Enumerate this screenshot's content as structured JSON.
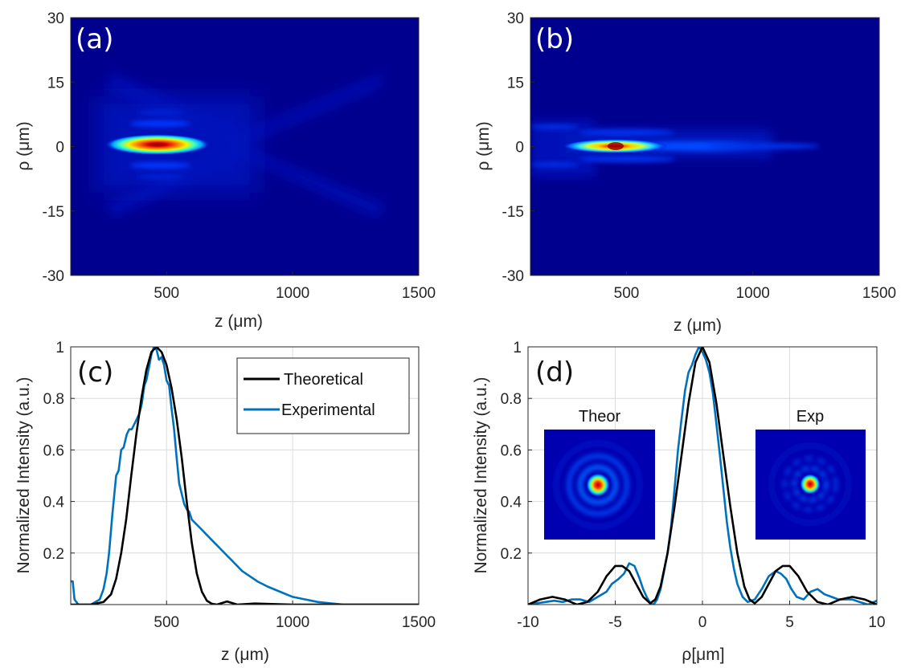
{
  "colors": {
    "theoretical": "#000000",
    "experimental": "#0072BD",
    "map_background": "#00008F",
    "grid": "#dcdcdc"
  },
  "panels": {
    "a": {
      "label": "(a)"
    },
    "b": {
      "label": "(b)"
    },
    "c": {
      "label": "(c)"
    },
    "d": {
      "label": "(d)"
    }
  },
  "insets": {
    "theor_title": "Theor",
    "exp_title": "Exp"
  },
  "chart_data": [
    {
      "type": "heatmap",
      "panel": "(a)",
      "xlabel": "z (μm)",
      "ylabel": "ρ (μm)",
      "xlim": [
        120,
        1500
      ],
      "ylim": [
        -30,
        30
      ],
      "xticks": [
        500,
        1000,
        1500
      ],
      "yticks": [
        -30,
        -15,
        0,
        15,
        30
      ],
      "xtick_labels": [
        "500",
        "1000",
        "1500"
      ],
      "ytick_labels": [
        "-30",
        "-15",
        "0",
        "15",
        "30"
      ],
      "colormap": "jet",
      "features": {
        "peak_z": 460,
        "peak_rho": 0,
        "main_lobe_z_range": [
          260,
          650
        ],
        "side_lobes_rho": [
          -5,
          5
        ],
        "faint_x_wings_z_range": [
          160,
          760
        ]
      }
    },
    {
      "type": "heatmap",
      "panel": "(b)",
      "xlabel": "z (μm)",
      "ylabel": "ρ (μm)",
      "xlim": [
        120,
        1500
      ],
      "ylim": [
        -30,
        30
      ],
      "xticks": [
        500,
        1000,
        1500
      ],
      "yticks": [
        -30,
        -15,
        0,
        15,
        30
      ],
      "xtick_labels": [
        "500",
        "1000",
        "1500"
      ],
      "ytick_labels": [
        "-30",
        "-15",
        "0",
        "15",
        "30"
      ],
      "colormap": "jet",
      "features": {
        "peak_z": 450,
        "peak_rho": 0,
        "main_lobe_z_range": [
          270,
          1000
        ]
      }
    },
    {
      "type": "line",
      "panel": "(c)",
      "xlabel": "z (μm)",
      "ylabel": "Normalized Intensity (a.u.)",
      "xlim": [
        120,
        1500
      ],
      "ylim": [
        0,
        1
      ],
      "xticks": [
        500,
        1000,
        1500
      ],
      "yticks": [
        0.2,
        0.4,
        0.6,
        0.8,
        1
      ],
      "xtick_labels": [
        "500",
        "1000",
        "1500"
      ],
      "ytick_labels": [
        "0.2",
        "0.4",
        "0.6",
        "0.8",
        "1"
      ],
      "grid": true,
      "legend": {
        "position": "top-right",
        "entries": [
          "Theoretical",
          "Experimental"
        ]
      },
      "series": [
        {
          "name": "Theoretical",
          "x": [
            120,
            200,
            250,
            280,
            300,
            320,
            340,
            360,
            380,
            400,
            420,
            440,
            460,
            480,
            500,
            520,
            540,
            560,
            580,
            600,
            620,
            640,
            660,
            680,
            700,
            740,
            780,
            850,
            1000,
            1500
          ],
          "y": [
            0.0,
            0.0,
            0.01,
            0.04,
            0.1,
            0.2,
            0.33,
            0.5,
            0.66,
            0.8,
            0.91,
            0.98,
            1.0,
            0.98,
            0.93,
            0.84,
            0.72,
            0.57,
            0.4,
            0.24,
            0.12,
            0.05,
            0.015,
            0.003,
            0.0,
            0.012,
            0.0,
            0.004,
            0.0,
            0.0
          ]
        },
        {
          "name": "Experimental",
          "x": [
            120,
            128,
            135,
            150,
            200,
            235,
            250,
            262,
            272,
            285,
            300,
            310,
            320,
            330,
            342,
            352,
            362,
            372,
            382,
            392,
            402,
            412,
            420,
            430,
            440,
            450,
            460,
            470,
            480,
            490,
            500,
            510,
            520,
            530,
            540,
            550,
            560,
            570,
            580,
            590,
            600,
            620,
            640,
            660,
            680,
            700,
            720,
            740,
            760,
            780,
            800,
            830,
            860,
            900,
            950,
            1000,
            1050,
            1100,
            1150,
            1200,
            1500
          ],
          "y": [
            0.09,
            0.09,
            0.02,
            0.0,
            0.0,
            0.02,
            0.06,
            0.12,
            0.2,
            0.35,
            0.5,
            0.52,
            0.6,
            0.61,
            0.66,
            0.68,
            0.68,
            0.7,
            0.72,
            0.74,
            0.78,
            0.85,
            0.87,
            0.92,
            0.97,
            1.0,
            0.99,
            0.95,
            0.96,
            0.93,
            0.87,
            0.85,
            0.76,
            0.68,
            0.57,
            0.47,
            0.43,
            0.39,
            0.37,
            0.36,
            0.33,
            0.31,
            0.29,
            0.27,
            0.25,
            0.23,
            0.21,
            0.19,
            0.17,
            0.15,
            0.13,
            0.11,
            0.09,
            0.07,
            0.05,
            0.03,
            0.02,
            0.01,
            0.005,
            0.0,
            0.0
          ]
        }
      ]
    },
    {
      "type": "line",
      "panel": "(d)",
      "xlabel": "ρ[μm]",
      "ylabel": "Normalized Intensity (a.u.)",
      "xlim": [
        -10,
        10
      ],
      "ylim": [
        0,
        1
      ],
      "xticks": [
        -10,
        -5,
        0,
        5,
        10
      ],
      "yticks": [
        0.2,
        0.4,
        0.6,
        0.8,
        1
      ],
      "xtick_labels": [
        "-10",
        "-5",
        "0",
        "5",
        "10"
      ],
      "ytick_labels": [
        "0.2",
        "0.4",
        "0.6",
        "0.8",
        "1"
      ],
      "grid": true,
      "series": [
        {
          "name": "Theoretical",
          "x": [
            -10,
            -9.3,
            -8.6,
            -7.9,
            -7.2,
            -6.6,
            -6.0,
            -5.5,
            -5.0,
            -4.6,
            -4.2,
            -3.8,
            -3.4,
            -3.0,
            -2.7,
            -2.4,
            -2.0,
            -1.6,
            -1.2,
            -0.8,
            -0.4,
            0,
            0.4,
            0.8,
            1.2,
            1.6,
            2.0,
            2.4,
            2.7,
            3.0,
            3.4,
            3.8,
            4.2,
            4.6,
            5.0,
            5.5,
            6.0,
            6.6,
            7.2,
            7.9,
            8.6,
            9.3,
            10
          ],
          "y": [
            0.0,
            0.02,
            0.03,
            0.02,
            0.0,
            0.01,
            0.05,
            0.11,
            0.15,
            0.15,
            0.13,
            0.08,
            0.03,
            0.005,
            0.02,
            0.07,
            0.2,
            0.38,
            0.58,
            0.78,
            0.94,
            1.0,
            0.94,
            0.78,
            0.58,
            0.38,
            0.2,
            0.07,
            0.02,
            0.005,
            0.03,
            0.08,
            0.13,
            0.15,
            0.15,
            0.11,
            0.05,
            0.01,
            0.0,
            0.02,
            0.03,
            0.02,
            0.0
          ]
        },
        {
          "name": "Experimental",
          "x": [
            -10,
            -9.5,
            -9.0,
            -8.5,
            -8.0,
            -7.5,
            -7.0,
            -6.5,
            -6.0,
            -5.5,
            -5.2,
            -4.8,
            -4.5,
            -4.2,
            -3.9,
            -3.6,
            -3.4,
            -3.2,
            -3.0,
            -2.8,
            -2.6,
            -2.4,
            -2.2,
            -2.0,
            -1.8,
            -1.6,
            -1.4,
            -1.2,
            -1.0,
            -0.8,
            -0.6,
            -0.4,
            -0.2,
            0,
            0.2,
            0.4,
            0.6,
            0.8,
            1.0,
            1.2,
            1.4,
            1.6,
            1.8,
            2.0,
            2.3,
            2.6,
            3.0,
            3.4,
            3.8,
            4.2,
            4.5,
            4.8,
            5.1,
            5.4,
            5.8,
            6.2,
            6.6,
            7.0,
            7.4,
            7.8,
            8.2,
            8.6,
            9.0,
            9.5,
            10
          ],
          "y": [
            0.0,
            0.005,
            0.01,
            0.015,
            0.01,
            0.02,
            0.02,
            0.01,
            0.03,
            0.05,
            0.08,
            0.1,
            0.12,
            0.16,
            0.15,
            0.1,
            0.06,
            0.03,
            0.005,
            0.0,
            0.02,
            0.06,
            0.13,
            0.2,
            0.3,
            0.45,
            0.6,
            0.72,
            0.83,
            0.9,
            0.93,
            0.97,
            1.0,
            0.98,
            0.95,
            0.9,
            0.82,
            0.7,
            0.58,
            0.45,
            0.32,
            0.22,
            0.14,
            0.08,
            0.03,
            0.01,
            0.02,
            0.06,
            0.11,
            0.13,
            0.12,
            0.1,
            0.06,
            0.03,
            0.02,
            0.05,
            0.06,
            0.04,
            0.03,
            0.02,
            0.02,
            0.02,
            0.01,
            0.0,
            0.015
          ]
        }
      ]
    }
  ]
}
